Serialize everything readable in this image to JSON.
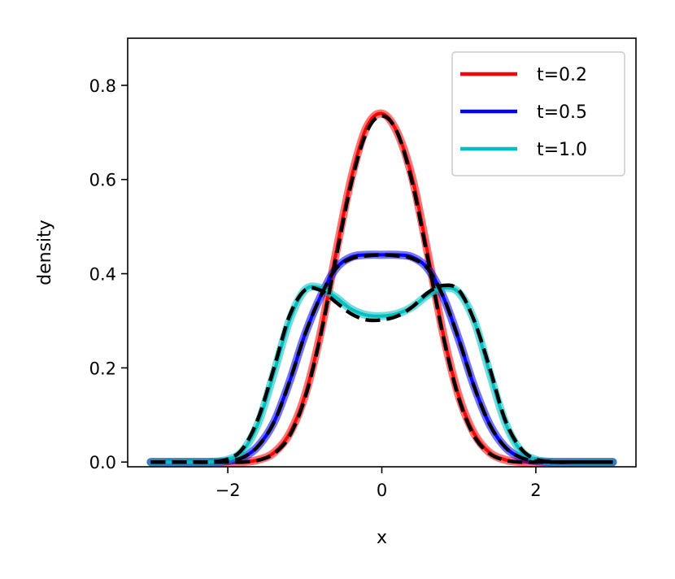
{
  "chart_data": {
    "type": "line",
    "xlabel": "x",
    "ylabel": "density",
    "xlim": [
      -3.3,
      3.3
    ],
    "ylim": [
      -0.01,
      0.9
    ],
    "xticks": [
      -2,
      0,
      2
    ],
    "xtick_labels": [
      "−2",
      "0",
      "2"
    ],
    "yticks": [
      0.0,
      0.2,
      0.4,
      0.6,
      0.8
    ],
    "ytick_labels": [
      "0.0",
      "0.2",
      "0.4",
      "0.6",
      "0.8"
    ],
    "grid": false,
    "legend_position": "top-right",
    "x": [
      -3.0,
      -2.5,
      -2.25,
      -2.0,
      -1.8,
      -1.6,
      -1.4,
      -1.2,
      -1.0,
      -0.8,
      -0.6,
      -0.4,
      -0.2,
      0.0,
      0.2,
      0.4,
      0.6,
      0.8,
      1.0,
      1.2,
      1.4,
      1.6,
      1.8,
      2.0,
      2.25,
      2.5,
      3.0
    ],
    "series": [
      {
        "name": "t=0.2",
        "color": "#ff0000",
        "values": [
          0.0,
          0.0,
          0.0,
          0.0,
          0.0,
          0.005,
          0.02,
          0.06,
          0.14,
          0.27,
          0.44,
          0.6,
          0.71,
          0.74,
          0.7,
          0.6,
          0.44,
          0.27,
          0.14,
          0.06,
          0.02,
          0.005,
          0.0,
          0.0,
          0.0,
          0.0,
          0.0
        ]
      },
      {
        "name": "t=0.5",
        "color": "#0000ff",
        "values": [
          0.0,
          0.0,
          0.0,
          0.002,
          0.01,
          0.035,
          0.085,
          0.17,
          0.27,
          0.35,
          0.41,
          0.435,
          0.44,
          0.44,
          0.44,
          0.435,
          0.41,
          0.35,
          0.26,
          0.16,
          0.08,
          0.032,
          0.01,
          0.002,
          0.0,
          0.0,
          0.0
        ]
      },
      {
        "name": "t=1.0",
        "color": "#00bfbf",
        "values": [
          0.0,
          0.0,
          0.0,
          0.005,
          0.025,
          0.085,
          0.19,
          0.3,
          0.365,
          0.37,
          0.35,
          0.325,
          0.312,
          0.31,
          0.315,
          0.33,
          0.355,
          0.37,
          0.36,
          0.3,
          0.19,
          0.085,
          0.025,
          0.005,
          0.0,
          0.0,
          0.0
        ]
      }
    ],
    "reference_series": [
      {
        "style": "dashed",
        "color": "#000000",
        "values": [
          0.0,
          0.0,
          0.0,
          0.0,
          0.0,
          0.004,
          0.018,
          0.055,
          0.135,
          0.265,
          0.43,
          0.59,
          0.7,
          0.735,
          0.7,
          0.59,
          0.43,
          0.265,
          0.135,
          0.055,
          0.018,
          0.004,
          0.0,
          0.0,
          0.0,
          0.0,
          0.0
        ]
      },
      {
        "style": "dashed",
        "color": "#000000",
        "values": [
          0.0,
          0.0,
          0.0,
          0.002,
          0.01,
          0.035,
          0.085,
          0.17,
          0.27,
          0.35,
          0.41,
          0.432,
          0.438,
          0.44,
          0.438,
          0.432,
          0.41,
          0.35,
          0.26,
          0.16,
          0.08,
          0.032,
          0.01,
          0.002,
          0.0,
          0.0,
          0.0
        ]
      },
      {
        "style": "dashed",
        "color": "#000000",
        "values": [
          0.0,
          0.0,
          0.0,
          0.006,
          0.03,
          0.095,
          0.2,
          0.31,
          0.365,
          0.365,
          0.34,
          0.315,
          0.302,
          0.302,
          0.31,
          0.33,
          0.36,
          0.375,
          0.365,
          0.3,
          0.2,
          0.09,
          0.03,
          0.006,
          0.0,
          0.0,
          0.0
        ]
      }
    ]
  }
}
